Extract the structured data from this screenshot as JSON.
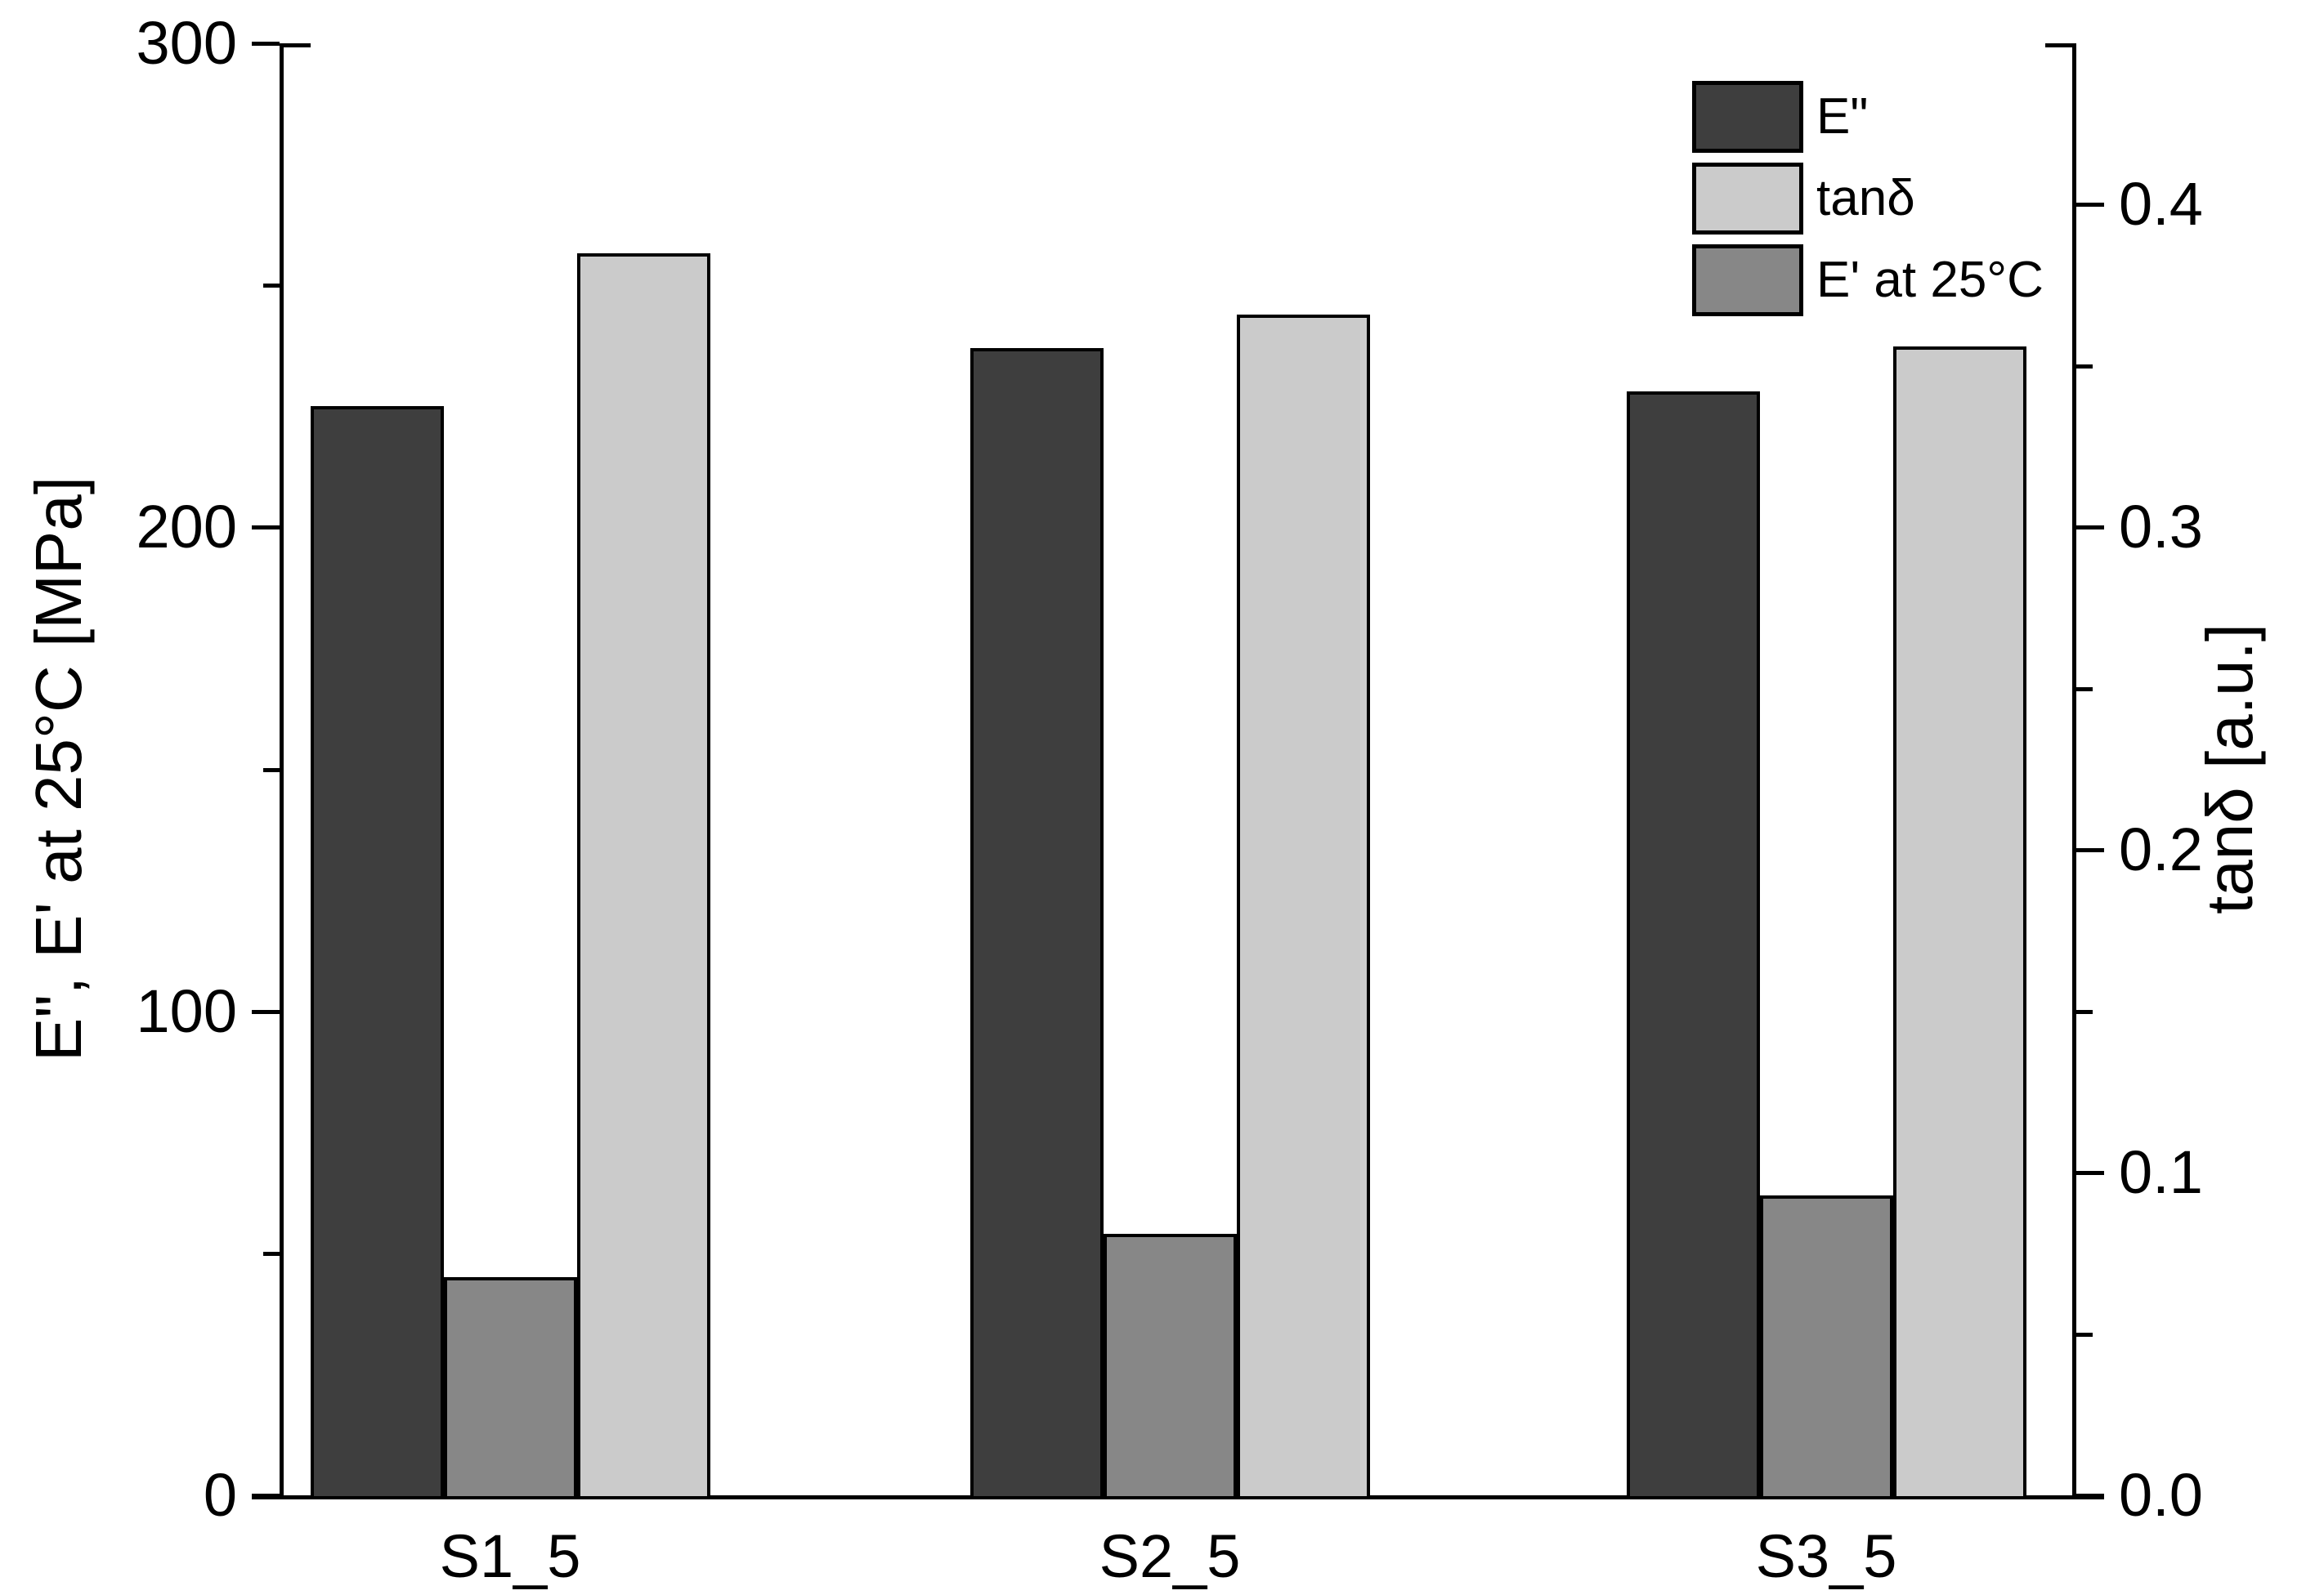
{
  "chart_data": {
    "type": "bar",
    "title": "",
    "categories": [
      "S1_5",
      "S2_5",
      "S3_5"
    ],
    "series": [
      {
        "name": "E\"",
        "axis": "left",
        "unit": "MPa",
        "color": "#3e3e3e",
        "values": [
          225,
          237,
          228
        ]
      },
      {
        "name": "E' at 25°C",
        "axis": "left",
        "unit": "MPa",
        "color": "#878787",
        "values": [
          45,
          54,
          62
        ]
      },
      {
        "name": "tanδ",
        "axis": "right",
        "unit": "a.u.",
        "color": "#cbcbcb",
        "values": [
          0.385,
          0.366,
          0.356
        ]
      }
    ],
    "left_axis": {
      "label": "E\", E' at 25°C [MPa]",
      "min": 0,
      "max": 300,
      "frame_top_value": 300,
      "major_ticks": [
        0,
        100,
        200,
        300
      ],
      "major_tick_labels": [
        "0",
        "100",
        "200",
        "300"
      ],
      "minor_ticks": [
        50,
        150,
        250
      ]
    },
    "right_axis": {
      "label": "tanδ [a.u.]",
      "min": 0,
      "max": 0.45,
      "frame_top_value": 0.45,
      "major_ticks": [
        0,
        0.1,
        0.2,
        0.3,
        0.4
      ],
      "major_tick_labels": [
        "0.0",
        "0.1",
        "0.2",
        "0.3",
        "0.4"
      ],
      "minor_ticks": [
        0.05,
        0.15,
        0.25,
        0.35
      ]
    },
    "legend": {
      "position": "top-right",
      "items": [
        {
          "label": "E\"",
          "color": "#3e3e3e"
        },
        {
          "label": "tanδ",
          "color": "#cbcbcb"
        },
        {
          "label": "E' at 25°C",
          "color": "#878787"
        }
      ]
    },
    "grid": "off",
    "background": "#ffffff"
  }
}
